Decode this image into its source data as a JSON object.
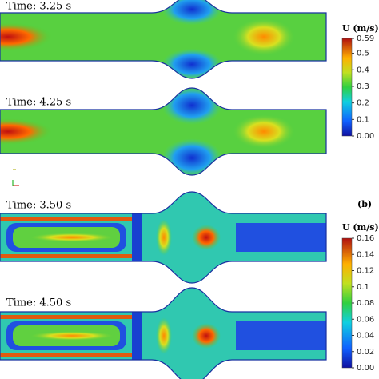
{
  "panels": [
    {
      "time": "Time: 3.25 s"
    },
    {
      "time": "Time: 4.25 s"
    },
    {
      "time": "Time: 3.50 s"
    },
    {
      "time": "Time: 4.50 s"
    }
  ],
  "panel_label_b": "(b)",
  "colorbars": [
    {
      "title": "U (m/s)",
      "lim": [
        0,
        0.59
      ],
      "ticks": [
        0.59,
        0.5,
        0.4,
        0.3,
        0.2,
        0.1,
        {
          "value": 0,
          "label": "0.00"
        }
      ]
    },
    {
      "title": "U (m/s)",
      "lim": [
        0,
        0.16
      ],
      "ticks": [
        0.16,
        0.14,
        0.12,
        0.1,
        0.08,
        0.06,
        0.04,
        0.02,
        {
          "value": 0,
          "label": "0.00"
        }
      ]
    }
  ]
}
